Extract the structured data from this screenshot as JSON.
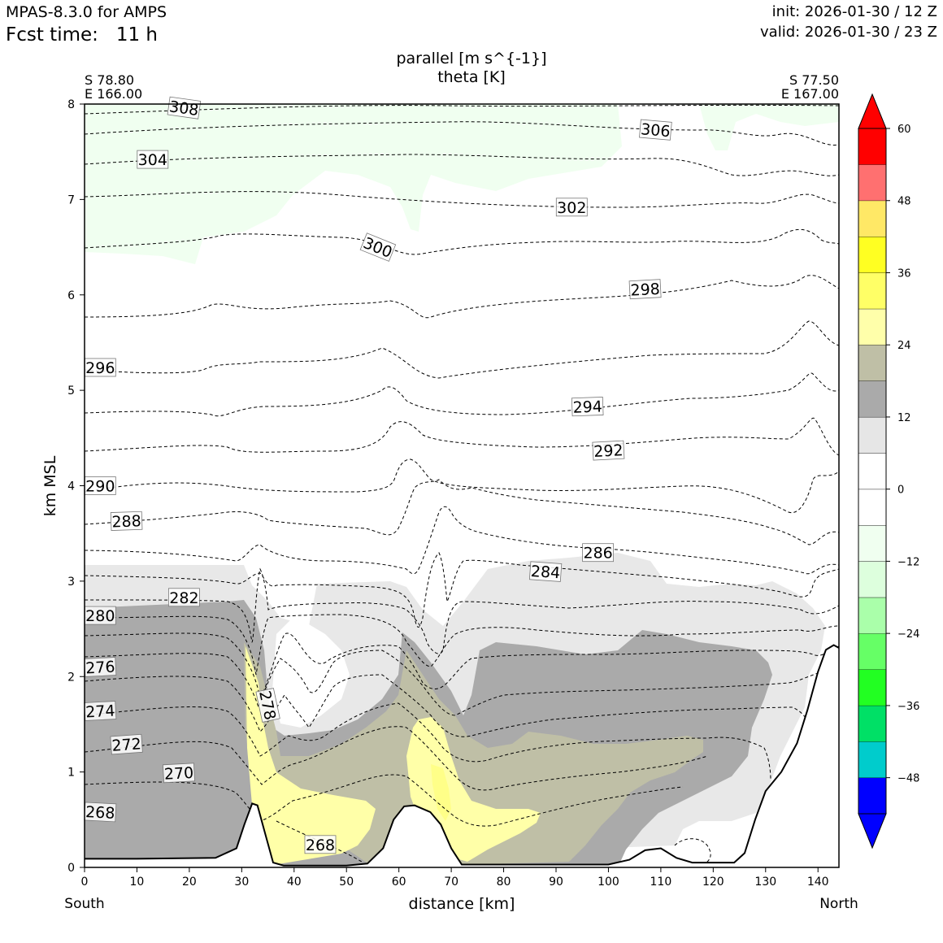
{
  "header": {
    "model": "MPAS-8.3.0 for AMPS",
    "fcst_label": "Fcst time:",
    "fcst_value": "11 h",
    "init": "init: 2026-01-30 / 12 Z",
    "valid": "valid: 2026-01-30 / 23 Z"
  },
  "chart_data": {
    "type": "cross-section",
    "title_lines": [
      "parallel [m s^{-1}]",
      "theta [K]"
    ],
    "left_coord": [
      "S 78.80",
      "E 166.00"
    ],
    "right_coord": [
      "S 77.50",
      "E 167.00"
    ],
    "xlabel": "distance [km]",
    "ylabel": "km MSL",
    "x_left_end": "South",
    "x_right_end": "North",
    "xlim": [
      0,
      144
    ],
    "ylim": [
      0,
      8
    ],
    "xticks": [
      0,
      10,
      20,
      30,
      40,
      50,
      60,
      70,
      80,
      90,
      100,
      110,
      120,
      130,
      140
    ],
    "yticks": [
      0,
      1,
      2,
      3,
      4,
      5,
      6,
      7,
      8
    ],
    "terrain": [
      [
        0,
        0.09
      ],
      [
        10,
        0.09
      ],
      [
        25,
        0.1
      ],
      [
        29,
        0.2
      ],
      [
        30.5,
        0.45
      ],
      [
        32,
        0.67
      ],
      [
        33,
        0.65
      ],
      [
        34.5,
        0.35
      ],
      [
        36,
        0.05
      ],
      [
        38,
        0.02
      ],
      [
        50,
        0.02
      ],
      [
        54,
        0.04
      ],
      [
        57,
        0.2
      ],
      [
        59,
        0.5
      ],
      [
        61,
        0.64
      ],
      [
        63,
        0.65
      ],
      [
        66,
        0.58
      ],
      [
        68,
        0.45
      ],
      [
        70,
        0.2
      ],
      [
        72,
        0.03
      ],
      [
        100,
        0.03
      ],
      [
        104,
        0.08
      ],
      [
        107,
        0.18
      ],
      [
        110,
        0.2
      ],
      [
        113,
        0.1
      ],
      [
        116,
        0.05
      ],
      [
        124,
        0.05
      ],
      [
        126,
        0.15
      ],
      [
        128,
        0.5
      ],
      [
        130,
        0.8
      ],
      [
        133,
        1.0
      ],
      [
        136,
        1.3
      ],
      [
        138,
        1.65
      ],
      [
        140,
        2.05
      ],
      [
        141.5,
        2.28
      ],
      [
        143,
        2.33
      ],
      [
        144,
        2.3
      ]
    ],
    "theta_contours": [
      {
        "value": "268",
        "labels": [
          {
            "text": "268",
            "x": 3,
            "y": 0.58,
            "rot": 3
          },
          {
            "text": "268",
            "x": 45,
            "y": 0.24,
            "rot": 0
          }
        ]
      },
      {
        "value": "270",
        "labels": [
          {
            "text": "270",
            "x": 18,
            "y": 0.99,
            "rot": -3
          }
        ]
      },
      {
        "value": "272",
        "labels": [
          {
            "text": "272",
            "x": 8,
            "y": 1.29,
            "rot": -4
          }
        ]
      },
      {
        "value": "274",
        "labels": [
          {
            "text": "274",
            "x": 3,
            "y": 1.64,
            "rot": -3
          }
        ]
      },
      {
        "value": "276",
        "labels": [
          {
            "text": "276",
            "x": 3,
            "y": 2.1,
            "rot": -3
          }
        ]
      },
      {
        "value": "278",
        "labels": [
          {
            "text": "278",
            "x": 35,
            "y": 1.7,
            "rot": 78
          }
        ]
      },
      {
        "value": "280",
        "labels": [
          {
            "text": "280",
            "x": 3,
            "y": 2.64,
            "rot": 0
          }
        ]
      },
      {
        "value": "282",
        "labels": [
          {
            "text": "282",
            "x": 19,
            "y": 2.83,
            "rot": 0
          }
        ]
      },
      {
        "value": "284",
        "labels": [
          {
            "text": "284",
            "x": 88,
            "y": 3.1,
            "rot": 4
          }
        ]
      },
      {
        "value": "286",
        "labels": [
          {
            "text": "286",
            "x": 98,
            "y": 3.3,
            "rot": 0
          }
        ]
      },
      {
        "value": "288",
        "labels": [
          {
            "text": "288",
            "x": 8,
            "y": 3.63,
            "rot": -2
          }
        ]
      },
      {
        "value": "290",
        "labels": [
          {
            "text": "290",
            "x": 3,
            "y": 4.0,
            "rot": 0
          }
        ]
      },
      {
        "value": "292",
        "labels": [
          {
            "text": "292",
            "x": 100,
            "y": 4.37,
            "rot": -3
          }
        ]
      },
      {
        "value": "294",
        "labels": [
          {
            "text": "294",
            "x": 96,
            "y": 4.83,
            "rot": -2
          }
        ]
      },
      {
        "value": "296",
        "labels": [
          {
            "text": "296",
            "x": 3,
            "y": 5.24,
            "rot": 0
          }
        ]
      },
      {
        "value": "298",
        "labels": [
          {
            "text": "298",
            "x": 107,
            "y": 6.06,
            "rot": -3
          }
        ]
      },
      {
        "value": "300",
        "labels": [
          {
            "text": "300",
            "x": 56,
            "y": 6.5,
            "rot": 22
          }
        ]
      },
      {
        "value": "302",
        "labels": [
          {
            "text": "302",
            "x": 93,
            "y": 6.92,
            "rot": 0
          }
        ]
      },
      {
        "value": "304",
        "labels": [
          {
            "text": "304",
            "x": 13,
            "y": 7.42,
            "rot": 0
          }
        ]
      },
      {
        "value": "306",
        "labels": [
          {
            "text": "306",
            "x": 109,
            "y": 7.73,
            "rot": 5
          }
        ]
      },
      {
        "value": "308",
        "labels": [
          {
            "text": "308",
            "x": 19,
            "y": 7.96,
            "rot": 8
          }
        ]
      }
    ],
    "wind_filled_regions": [
      {
        "range": "-12 to -6",
        "description": "weak negative (light green) near top-left"
      },
      {
        "range": "6 to 12",
        "description": "light grey"
      },
      {
        "range": "12 to 18",
        "description": "dark grey"
      },
      {
        "range": "18 to 24",
        "description": "olive"
      },
      {
        "range": "24 to 30",
        "description": "light yellow"
      }
    ],
    "colorbar": {
      "levels": [
        -54,
        -48,
        -42,
        -36,
        -30,
        -24,
        -18,
        -12,
        -6,
        0,
        6,
        12,
        18,
        24,
        30,
        36,
        42,
        48,
        54,
        60
      ],
      "tick_labels": [
        "60",
        "48",
        "36",
        "24",
        "12",
        "0",
        "−12",
        "−24",
        "−36",
        "−48"
      ],
      "tick_values": [
        60,
        48,
        36,
        24,
        12,
        0,
        -12,
        -24,
        -36,
        -48
      ],
      "colors": [
        "#0000ff",
        "#00cccc",
        "#00e066",
        "#22ff22",
        "#66ff66",
        "#aaffaa",
        "#ddffdd",
        "#f0fff0",
        "#ffffff",
        "#ffffff",
        "#e6e6e6",
        "#aaaaaa",
        "#bfbfa6",
        "#ffffaa",
        "#ffff66",
        "#ffff22",
        "#ffe866",
        "#ff7070",
        "#ff0000"
      ],
      "lower_extend_color": "#0000ff",
      "upper_extend_color": "#ff0000"
    }
  }
}
